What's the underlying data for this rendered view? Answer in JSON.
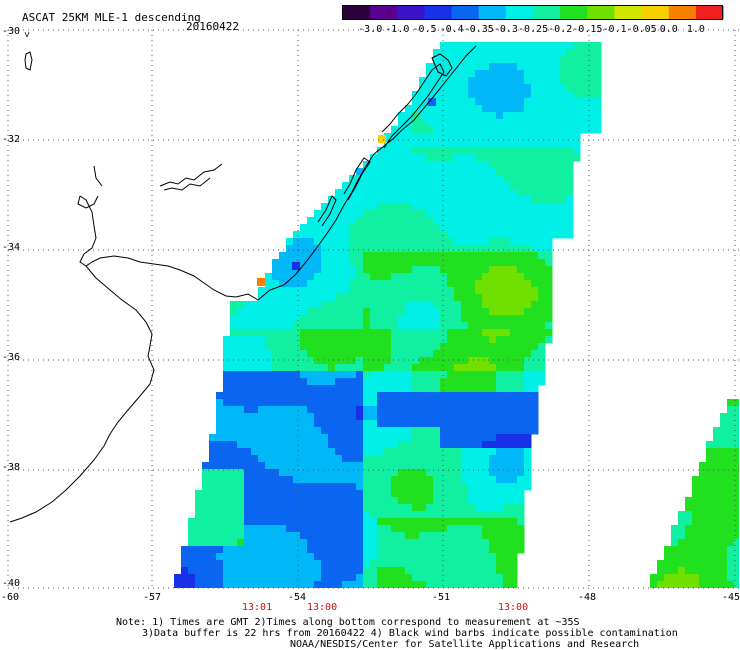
{
  "header": {
    "title": "ASCAT 25KM MLE-1 descending",
    "date": "20160422"
  },
  "colorbar": {
    "ticks": [
      "-3.0",
      "-1.0",
      "-0.5",
      "-0.4",
      "-0.35",
      "-0.3",
      "-0.25",
      "-0.2",
      "-0.15",
      "-0.1",
      "-0.05",
      "0.0",
      "1.0"
    ],
    "colors": [
      "#2a0038",
      "#5a0090",
      "#3a12c8",
      "#1830e8",
      "#0a66f0",
      "#00b8f8",
      "#00f0e8",
      "#10f0a0",
      "#20e020",
      "#70e000",
      "#d0e800",
      "#f8d000",
      "#f88000",
      "#f02020"
    ]
  },
  "map": {
    "lat_labels": [
      "-30",
      "-32",
      "-34",
      "-36",
      "-38",
      "-40"
    ],
    "lon_labels": [
      "-60",
      "-57",
      "-54",
      "-51",
      "-48",
      "-45"
    ],
    "time_labels": [
      "13:01",
      "13:00",
      "13:00"
    ],
    "time_color": "#d01010",
    "gridline_color": "#444444",
    "land_outline_color": "#000000"
  },
  "notes": {
    "line1": "Note: 1) Times are GMT 2)Times along bottom correspond to measurement at ~35S",
    "line2": "3)Data buffer is 22 hrs from 20160422 4) Black wind barbs indicate possible contamination",
    "line3": "NOAA/NESDIS/Center for Satellite Applications and Research"
  }
}
